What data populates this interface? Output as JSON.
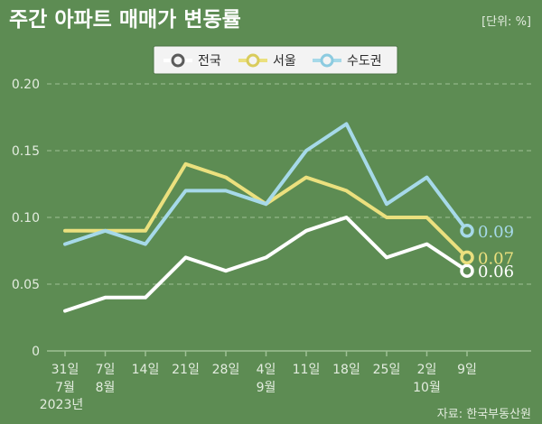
{
  "header": {
    "title": "주간 아파트 매매가 변동률",
    "unit": "[단위: %]"
  },
  "colors": {
    "background": "#5d8c53",
    "legend_bg": "#f3f3f3",
    "grid": "#9fc095",
    "axis_text": "#e3ecdf",
    "title_text": "#ffffff",
    "series_national": "#ffffff",
    "series_seoul": "#ebe07e",
    "series_capital": "#a6d9e9"
  },
  "chart_data": {
    "type": "line",
    "title": "주간 아파트 매매가 변동률",
    "unit_label": "[단위: %]",
    "categories": [
      "31일",
      "7일",
      "14일",
      "21일",
      "28일",
      "4일",
      "11일",
      "18일",
      "25일",
      "2일",
      "9일"
    ],
    "category_sublabels": [
      "7월",
      "8월",
      "",
      "",
      "",
      "9월",
      "",
      "",
      "",
      "10월",
      ""
    ],
    "year_label": "2023년",
    "yticks": [
      "0",
      "0.05",
      "0.10",
      "0.15",
      "0.20"
    ],
    "ylim": [
      0,
      0.2
    ],
    "series": [
      {
        "name": "전국",
        "color": "#ffffff",
        "values": [
          0.03,
          0.04,
          0.04,
          0.07,
          0.06,
          0.07,
          0.09,
          0.1,
          0.07,
          0.08,
          0.06
        ],
        "end_label": "0.06"
      },
      {
        "name": "서울",
        "color": "#ebe07e",
        "values": [
          0.09,
          0.09,
          0.09,
          0.14,
          0.13,
          0.11,
          0.13,
          0.12,
          0.1,
          0.1,
          0.07
        ],
        "end_label": "0.07"
      },
      {
        "name": "수도권",
        "color": "#a6d9e9",
        "values": [
          0.08,
          0.09,
          0.08,
          0.12,
          0.12,
          0.11,
          0.15,
          0.17,
          0.11,
          0.13,
          0.09
        ],
        "end_label": "0.09"
      }
    ],
    "legend_position": "top-center",
    "grid": true
  },
  "source": "자료: 한국부동산원"
}
